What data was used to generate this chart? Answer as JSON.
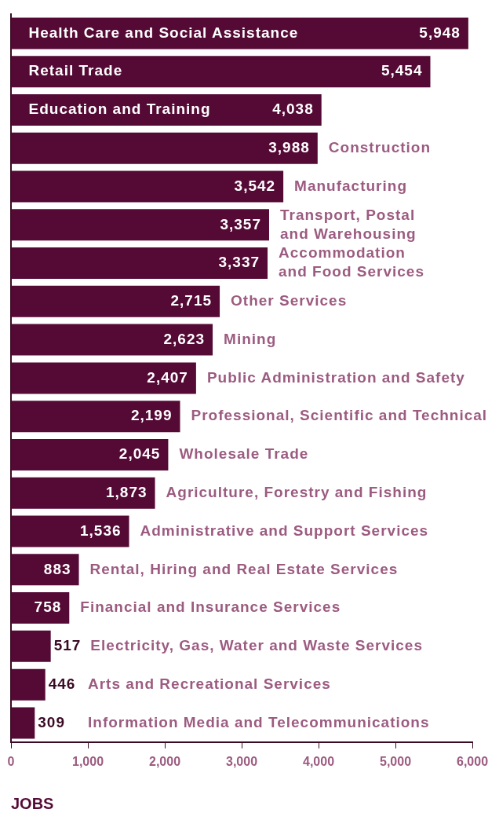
{
  "chart_data": {
    "type": "bar",
    "orientation": "horizontal",
    "xlabel": "JOBS",
    "categories": [
      "Health Care and Social Assistance",
      "Retail Trade",
      "Education and Training",
      "Construction",
      "Manufacturing",
      "Transport, Postal and Warehousing",
      "Accommodation and Food Services",
      "Other Services",
      "Mining",
      "Public Administration and Safety",
      "Professional, Scientific and Technical",
      "Wholesale Trade",
      "Agriculture, Forestry and Fishing",
      "Administrative and Support Services",
      "Rental, Hiring and Real Estate Services",
      "Financial and Insurance Services",
      "Electricity, Gas, Water and Waste Services",
      "Arts and Recreational Services",
      "Information Media and Telecommunications"
    ],
    "values": [
      5948,
      5454,
      4038,
      3988,
      3542,
      3357,
      3337,
      2715,
      2623,
      2407,
      2199,
      2045,
      1873,
      1536,
      883,
      758,
      517,
      446,
      309
    ],
    "value_labels": [
      "5,948",
      "5,454",
      "4,038",
      "3,988",
      "3,542",
      "3,357",
      "3,337",
      "2,715",
      "2,623",
      "2,407",
      "2,199",
      "2,045",
      "1,873",
      "1,536",
      "883",
      "758",
      "517",
      "446",
      "309"
    ],
    "color": "#550a35",
    "xlim": [
      0,
      6000
    ],
    "xticks": [
      0,
      {
        "value": 1000,
        "label": "1,000"
      },
      {
        "value": 2000,
        "label": "2,000"
      },
      {
        "value": 3000,
        "label": "3,000"
      },
      {
        "value": 4000,
        "label": "4,000"
      },
      {
        "value": 5000,
        "label": "5,000"
      },
      {
        "value": 6000,
        "label": "6,000"
      }
    ],
    "grid": false,
    "legend": false
  }
}
